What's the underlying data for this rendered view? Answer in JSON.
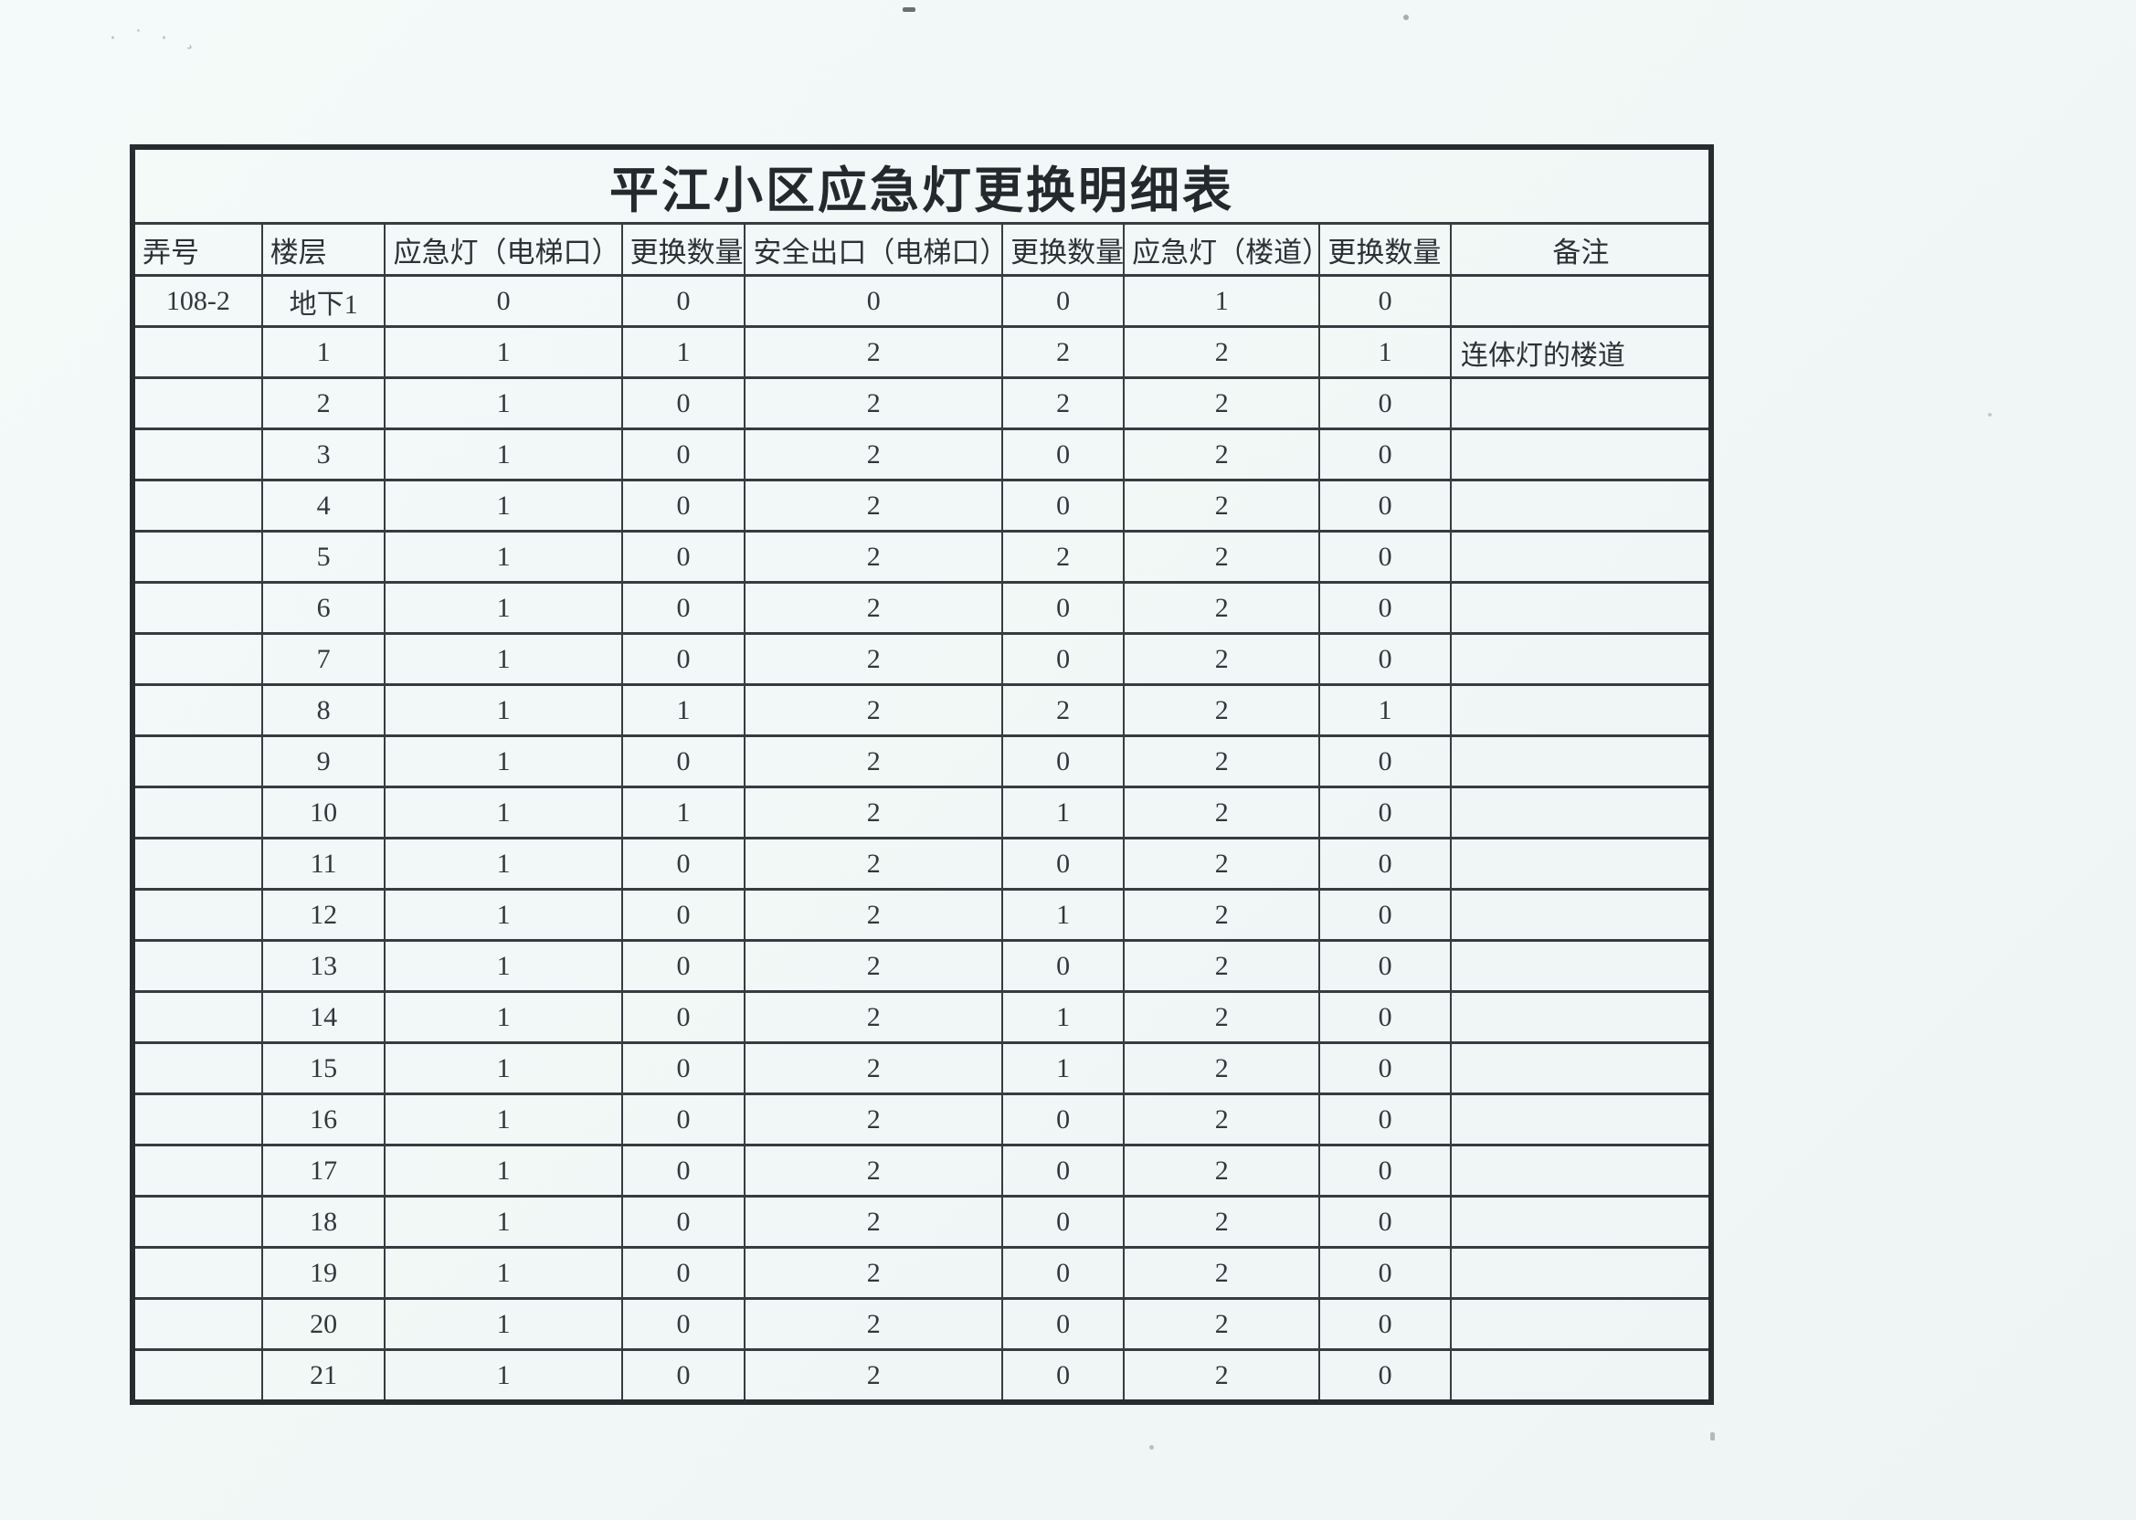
{
  "document": {
    "title": "平江小区应急灯更换明细表",
    "columns": [
      "弄号",
      "楼层",
      "应急灯（电梯口）",
      "更换数量",
      "安全出口（电梯口）",
      "更换数量",
      "应急灯（楼道）",
      "更换数量",
      "备注"
    ],
    "column_keys": [
      "lane-no",
      "floor",
      "emergency-light-elevator",
      "replace-qty-1",
      "safety-exit-elevator",
      "replace-qty-2",
      "emergency-light-corridor",
      "replace-qty-3",
      "remark"
    ],
    "rows": [
      [
        "108-2",
        "地下1",
        "0",
        "0",
        "0",
        "0",
        "1",
        "0",
        ""
      ],
      [
        "",
        "1",
        "1",
        "1",
        "2",
        "2",
        "2",
        "1",
        "连体灯的楼道"
      ],
      [
        "",
        "2",
        "1",
        "0",
        "2",
        "2",
        "2",
        "0",
        ""
      ],
      [
        "",
        "3",
        "1",
        "0",
        "2",
        "0",
        "2",
        "0",
        ""
      ],
      [
        "",
        "4",
        "1",
        "0",
        "2",
        "0",
        "2",
        "0",
        ""
      ],
      [
        "",
        "5",
        "1",
        "0",
        "2",
        "2",
        "2",
        "0",
        ""
      ],
      [
        "",
        "6",
        "1",
        "0",
        "2",
        "0",
        "2",
        "0",
        ""
      ],
      [
        "",
        "7",
        "1",
        "0",
        "2",
        "0",
        "2",
        "0",
        ""
      ],
      [
        "",
        "8",
        "1",
        "1",
        "2",
        "2",
        "2",
        "1",
        ""
      ],
      [
        "",
        "9",
        "1",
        "0",
        "2",
        "0",
        "2",
        "0",
        ""
      ],
      [
        "",
        "10",
        "1",
        "1",
        "2",
        "1",
        "2",
        "0",
        ""
      ],
      [
        "",
        "11",
        "1",
        "0",
        "2",
        "0",
        "2",
        "0",
        ""
      ],
      [
        "",
        "12",
        "1",
        "0",
        "2",
        "1",
        "2",
        "0",
        ""
      ],
      [
        "",
        "13",
        "1",
        "0",
        "2",
        "0",
        "2",
        "0",
        ""
      ],
      [
        "",
        "14",
        "1",
        "0",
        "2",
        "1",
        "2",
        "0",
        ""
      ],
      [
        "",
        "15",
        "1",
        "0",
        "2",
        "1",
        "2",
        "0",
        ""
      ],
      [
        "",
        "16",
        "1",
        "0",
        "2",
        "0",
        "2",
        "0",
        ""
      ],
      [
        "",
        "17",
        "1",
        "0",
        "2",
        "0",
        "2",
        "0",
        ""
      ],
      [
        "",
        "18",
        "1",
        "0",
        "2",
        "0",
        "2",
        "0",
        ""
      ],
      [
        "",
        "19",
        "1",
        "0",
        "2",
        "0",
        "2",
        "0",
        ""
      ],
      [
        "",
        "20",
        "1",
        "0",
        "2",
        "0",
        "2",
        "0",
        ""
      ],
      [
        "",
        "21",
        "1",
        "0",
        "2",
        "0",
        "2",
        "0",
        ""
      ]
    ]
  },
  "colors": {
    "paper": "#f3f8f7",
    "ink": "#2e3438",
    "line": "#363c40",
    "outer_border": "#272c2f"
  }
}
